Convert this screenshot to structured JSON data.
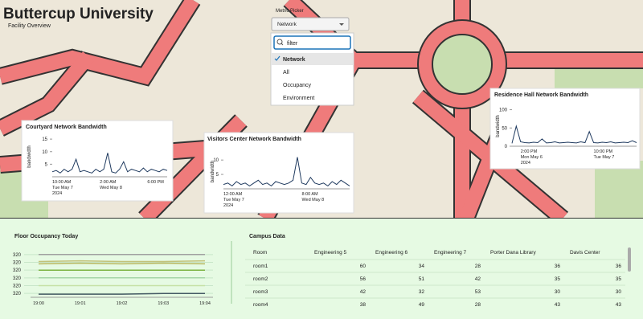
{
  "header": {
    "title": "Buttercup University",
    "subtitle": "Facility Overview"
  },
  "metric_picker": {
    "label": "Metric Picker",
    "selected": "Network",
    "filter_placeholder": "filter",
    "options": [
      "Network",
      "All",
      "Occupancy",
      "Environment"
    ]
  },
  "chart_data": [
    {
      "type": "line",
      "title": "Courtyard Network Bandwidth",
      "y_label": "bandwidth",
      "categories": [
        [
          "10:00 AM",
          "Tue May 7",
          "2024"
        ],
        null,
        null,
        null,
        null,
        null,
        null,
        null,
        null,
        null,
        null,
        null,
        [
          "2:00 AM",
          "Wed May 8"
        ],
        null,
        null,
        null,
        null,
        null,
        null,
        null,
        null,
        null,
        null,
        null,
        [
          "6:00 PM"
        ],
        null,
        null,
        null,
        null,
        null
      ],
      "series": [
        {
          "color": "#1f3a5f",
          "values": [
            2,
            2.5,
            1.5,
            3,
            2,
            3,
            7,
            2,
            2.5,
            2,
            1.5,
            3,
            2,
            3,
            9.5,
            2,
            1.5,
            3,
            6,
            2,
            3,
            2.5,
            2,
            3.5,
            2,
            3,
            2.5,
            2,
            3,
            2.5
          ]
        }
      ],
      "ylim": [
        0,
        16
      ],
      "yticks": [
        5,
        10,
        15
      ],
      "grid": false
    },
    {
      "type": "line",
      "title": "Visitors Center Network Bandwidth",
      "y_label": "bandwidth",
      "categories": [
        [
          "12:00 AM",
          "Tue May 7",
          "2024"
        ],
        null,
        null,
        null,
        null,
        null,
        null,
        null,
        null,
        null,
        null,
        null,
        null,
        null,
        null,
        null,
        null,
        null,
        [
          "8:00 AM",
          "Wed May 8"
        ],
        null,
        null,
        null,
        null,
        null,
        null,
        null,
        null,
        null,
        null,
        null
      ],
      "series": [
        {
          "color": "#1f3a5f",
          "values": [
            1.5,
            2,
            1,
            2.5,
            1.5,
            2,
            1,
            2,
            3,
            1.5,
            2,
            1,
            2.5,
            2,
            1.5,
            2,
            3,
            11,
            2,
            1.5,
            4,
            2,
            1.5,
            2,
            1,
            2.5,
            1.5,
            3,
            2,
            1
          ]
        }
      ],
      "ylim": [
        0,
        12
      ],
      "yticks": [
        5,
        10
      ],
      "grid": false
    },
    {
      "type": "line",
      "title": "Residence Hall Network Bandwidth",
      "y_label": "bandwidth",
      "categories": [
        null,
        null,
        [
          "2:00 PM",
          "Mon May 6",
          "2024"
        ],
        null,
        null,
        null,
        null,
        null,
        null,
        null,
        null,
        null,
        null,
        null,
        null,
        null,
        null,
        null,
        null,
        [
          "10:00 PM",
          "Tue May 7"
        ],
        null,
        null,
        null,
        null,
        null,
        null,
        null,
        null,
        null,
        null
      ],
      "series": [
        {
          "color": "#1f3a5f",
          "values": [
            8,
            55,
            12,
            10,
            9,
            11,
            10,
            20,
            9,
            10,
            12,
            9,
            10,
            11,
            10,
            9,
            12,
            10,
            40,
            10,
            9,
            11,
            10,
            12,
            9,
            10,
            11,
            10,
            15,
            10
          ]
        }
      ],
      "ylim": [
        0,
        110
      ],
      "yticks": [
        0,
        50,
        100
      ],
      "grid": false
    },
    {
      "type": "line",
      "title": "Floor Occupancy Today",
      "categories": [
        "19:00",
        "19:01",
        "19:02",
        "19:03",
        "19:04"
      ],
      "series": [
        {
          "color": "#a0a0a0",
          "values": [
            320.2,
            320.2,
            320.2,
            320.2,
            320.2
          ]
        },
        {
          "color": "#b8b860",
          "values": [
            320.08,
            320.09,
            320.08,
            320.09,
            320.08
          ]
        },
        {
          "color": "#c2c27a",
          "values": [
            320.11,
            320.12,
            320.11,
            320.11,
            320.12
          ]
        },
        {
          "color": "#7cb342",
          "values": [
            320,
            320,
            320,
            320,
            320
          ]
        },
        {
          "color": "#a5d6a7",
          "values": [
            319.9,
            319.9,
            319.9,
            319.9,
            319.9
          ]
        },
        {
          "color": "#c5e1a5",
          "values": [
            319.8,
            319.8,
            319.8,
            319.8,
            319.8
          ]
        },
        {
          "color": "#455a64",
          "values": [
            319.69,
            319.69,
            319.69,
            319.7,
            319.7
          ]
        }
      ],
      "ylim": [
        319.65,
        320.25
      ],
      "yticks": [
        {
          "value": 320.2,
          "label": "320"
        },
        {
          "value": 320.1,
          "label": "320"
        },
        {
          "value": 320.0,
          "label": "320"
        },
        {
          "value": 319.9,
          "label": "320"
        },
        {
          "value": 319.8,
          "label": "320"
        },
        {
          "value": 319.7,
          "label": "320"
        }
      ],
      "grid": true
    }
  ],
  "table": {
    "title": "Campus Data",
    "columns": [
      "Room",
      "Engineering 5",
      "Engineering 6",
      "Engineering 7",
      "Porter Dana Library",
      "Davis Center"
    ],
    "rows": [
      [
        "room1",
        60,
        34,
        28,
        36,
        36
      ],
      [
        "room2",
        56,
        51,
        42,
        35,
        35
      ],
      [
        "room3",
        42,
        32,
        53,
        30,
        30
      ],
      [
        "room4",
        38,
        49,
        28,
        43,
        43
      ]
    ]
  }
}
